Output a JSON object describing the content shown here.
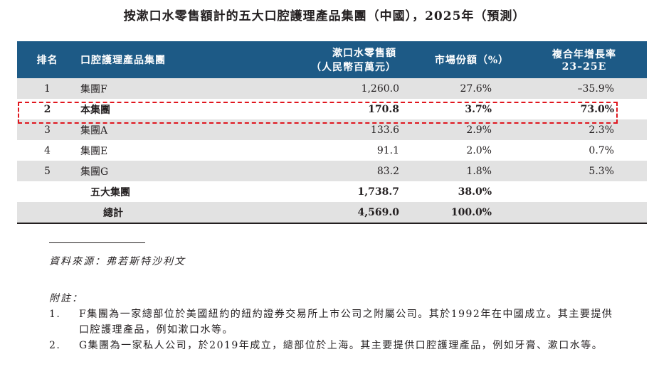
{
  "title": "按漱口水零售額計的五大口腔護理產品集團（中國），2025年（預測）",
  "table": {
    "headers": {
      "rank": "排名",
      "group": "口腔護理產品集團",
      "sales_line1": "漱口水零售額",
      "sales_line2": "（人民幣百萬元）",
      "share": "市場份額（%）",
      "cagr_line1": "複合年增長率",
      "cagr_line2": "23–25E"
    },
    "rows": [
      {
        "rank": "1",
        "group": "集團F",
        "sales": "1,260.0",
        "share": "27.6%",
        "cagr": "–35.9%"
      },
      {
        "rank": "2",
        "group": "本集團",
        "sales": "170.8",
        "share": "3.7%",
        "cagr": "73.0%"
      },
      {
        "rank": "3",
        "group": "集團A",
        "sales": "133.6",
        "share": "2.9%",
        "cagr": "2.3%"
      },
      {
        "rank": "4",
        "group": "集團E",
        "sales": "91.1",
        "share": "2.0%",
        "cagr": "0.7%"
      },
      {
        "rank": "5",
        "group": "集團G",
        "sales": "83.2",
        "share": "1.8%",
        "cagr": "5.3%"
      }
    ],
    "top5": {
      "label": "五大集團",
      "sales": "1,738.7",
      "share": "38.0%"
    },
    "total": {
      "label": "總計",
      "sales": "4,569.0",
      "share": "100.0%"
    }
  },
  "source": "資料來源：弗若斯特沙利文",
  "notes_label": "附註：",
  "notes": [
    {
      "num": "1.",
      "text": "F集團為一家總部位於美國紐約的紐約證券交易所上市公司之附屬公司。其於1992年在中國成立。其主要提供口腔護理產品，例如漱口水等。"
    },
    {
      "num": "2.",
      "text": "G集團為一家私人公司，於2019年成立，總部位於上海。其主要提供口腔護理產品，例如牙膏、漱口水等。"
    }
  ],
  "colors": {
    "header_bg": "#1d5a86",
    "shade": "#e2e2e2",
    "highlight": "#e0161e"
  }
}
